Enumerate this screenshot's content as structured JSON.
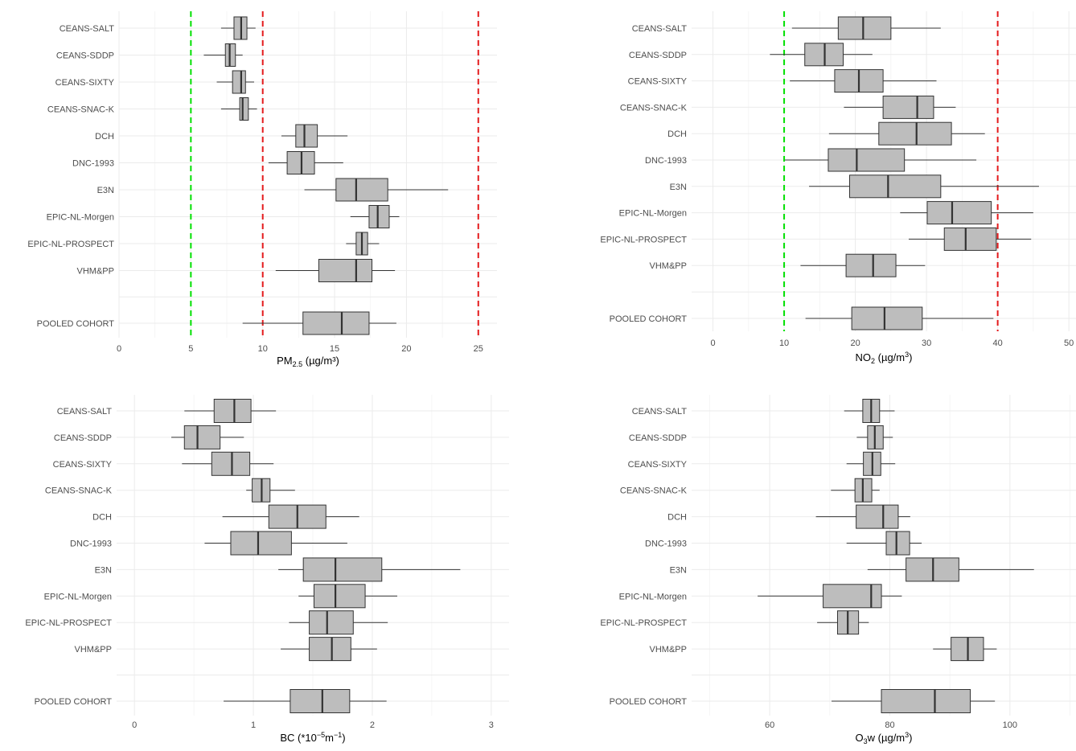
{
  "chart_data": [
    {
      "type": "boxplot",
      "orientation": "horizontal",
      "xlabel": "PM 2.5 (µg/m³)",
      "xlabel_parts": {
        "main": "PM",
        "sub": "2.5",
        "rest": " (µg/m³)"
      },
      "xlim": [
        0,
        26.3
      ],
      "xticks": [
        0,
        5,
        10,
        15,
        20,
        25
      ],
      "grid": true,
      "reference_lines": [
        {
          "value": 5,
          "color": "#00e000"
        },
        {
          "value": 10,
          "color": "#e41a1c"
        },
        {
          "value": 25,
          "color": "#e41a1c"
        }
      ],
      "categories": [
        "CEANS-SALT",
        "CEANS-SDDP",
        "CEANS-SIXTY",
        "CEANS-SNAC-K",
        "DCH",
        "DNC-1993",
        "E3N",
        "EPIC-NL-Morgen",
        "EPIC-NL-PROSPECT",
        "VHM&PP",
        "POOLED COHORT"
      ],
      "boxes": [
        {
          "low": 7.1,
          "q1": 8.0,
          "median": 8.5,
          "q3": 8.9,
          "high": 9.5
        },
        {
          "low": 5.9,
          "q1": 7.4,
          "median": 7.7,
          "q3": 8.1,
          "high": 8.6
        },
        {
          "low": 6.8,
          "q1": 7.9,
          "median": 8.5,
          "q3": 8.8,
          "high": 9.4
        },
        {
          "low": 7.1,
          "q1": 8.4,
          "median": 8.6,
          "q3": 9.0,
          "high": 9.6
        },
        {
          "low": 11.3,
          "q1": 12.3,
          "median": 12.9,
          "q3": 13.8,
          "high": 15.9
        },
        {
          "low": 10.4,
          "q1": 11.7,
          "median": 12.7,
          "q3": 13.6,
          "high": 15.6
        },
        {
          "low": 12.9,
          "q1": 15.1,
          "median": 16.5,
          "q3": 18.7,
          "high": 22.9
        },
        {
          "low": 16.1,
          "q1": 17.4,
          "median": 18.0,
          "q3": 18.8,
          "high": 19.5
        },
        {
          "low": 15.8,
          "q1": 16.5,
          "median": 16.9,
          "q3": 17.3,
          "high": 18.1
        },
        {
          "low": 10.9,
          "q1": 13.9,
          "median": 16.5,
          "q3": 17.6,
          "high": 19.2
        },
        {
          "low": 8.6,
          "q1": 12.8,
          "median": 15.5,
          "q3": 17.4,
          "high": 19.3
        }
      ]
    },
    {
      "type": "boxplot",
      "orientation": "horizontal",
      "xlabel": "NO2 (µg/m3)",
      "xlabel_parts": {
        "main": "NO",
        "sub": "2",
        "rest": " (µg/m",
        "sup": "3",
        "end": ")"
      },
      "xlim": [
        -3,
        51
      ],
      "xticks": [
        0,
        10,
        20,
        30,
        40,
        50
      ],
      "grid": true,
      "reference_lines": [
        {
          "value": 10,
          "color": "#00e000"
        },
        {
          "value": 40,
          "color": "#e41a1c"
        }
      ],
      "categories": [
        "CEANS-SALT",
        "CEANS-SDDP",
        "CEANS-SIXTY",
        "CEANS-SNAC-K",
        "DCH",
        "DNC-1993",
        "E3N",
        "EPIC-NL-Morgen",
        "EPIC-NL-PROSPECT",
        "VHM&PP",
        "POOLED COHORT"
      ],
      "boxes": [
        {
          "low": 11.1,
          "q1": 17.6,
          "median": 21.1,
          "q3": 25.0,
          "high": 32.0
        },
        {
          "low": 8.0,
          "q1": 12.9,
          "median": 15.7,
          "q3": 18.3,
          "high": 22.4
        },
        {
          "low": 10.8,
          "q1": 17.1,
          "median": 20.5,
          "q3": 23.9,
          "high": 31.4
        },
        {
          "low": 18.4,
          "q1": 23.9,
          "median": 28.7,
          "q3": 31.0,
          "high": 34.1
        },
        {
          "low": 16.3,
          "q1": 23.3,
          "median": 28.6,
          "q3": 33.5,
          "high": 38.2
        },
        {
          "low": 10.1,
          "q1": 16.2,
          "median": 20.2,
          "q3": 26.9,
          "high": 37.0
        },
        {
          "low": 13.5,
          "q1": 19.2,
          "median": 24.6,
          "q3": 32.0,
          "high": 45.8
        },
        {
          "low": 26.3,
          "q1": 30.1,
          "median": 33.6,
          "q3": 39.1,
          "high": 45.0
        },
        {
          "low": 27.5,
          "q1": 32.5,
          "median": 35.5,
          "q3": 39.8,
          "high": 44.7
        },
        {
          "low": 12.3,
          "q1": 18.7,
          "median": 22.5,
          "q3": 25.7,
          "high": 29.8
        },
        {
          "low": 13.0,
          "q1": 19.5,
          "median": 24.1,
          "q3": 29.4,
          "high": 39.4
        }
      ]
    },
    {
      "type": "boxplot",
      "orientation": "horizontal",
      "xlabel": "BC (*10-5m-1)",
      "xlabel_parts": {
        "main": "BC (*10",
        "sup": "−5",
        "rest": "m",
        "sup2": "−1",
        "end": ")"
      },
      "xlim": [
        -0.15,
        3.15
      ],
      "xticks": [
        0,
        1,
        2,
        3
      ],
      "grid": true,
      "reference_lines": [],
      "categories": [
        "CEANS-SALT",
        "CEANS-SDDP",
        "CEANS-SIXTY",
        "CEANS-SNAC-K",
        "DCH",
        "DNC-1993",
        "E3N",
        "EPIC-NL-Morgen",
        "EPIC-NL-PROSPECT",
        "VHM&PP",
        "POOLED COHORT"
      ],
      "boxes": [
        {
          "low": 0.42,
          "q1": 0.67,
          "median": 0.84,
          "q3": 0.98,
          "high": 1.19
        },
        {
          "low": 0.31,
          "q1": 0.42,
          "median": 0.53,
          "q3": 0.72,
          "high": 0.92
        },
        {
          "low": 0.4,
          "q1": 0.65,
          "median": 0.82,
          "q3": 0.97,
          "high": 1.17
        },
        {
          "low": 0.94,
          "q1": 0.99,
          "median": 1.07,
          "q3": 1.14,
          "high": 1.35
        },
        {
          "low": 0.74,
          "q1": 1.13,
          "median": 1.37,
          "q3": 1.61,
          "high": 1.89
        },
        {
          "low": 0.59,
          "q1": 0.81,
          "median": 1.04,
          "q3": 1.32,
          "high": 1.79
        },
        {
          "low": 1.21,
          "q1": 1.42,
          "median": 1.69,
          "q3": 2.08,
          "high": 2.74
        },
        {
          "low": 1.38,
          "q1": 1.51,
          "median": 1.69,
          "q3": 1.94,
          "high": 2.21
        },
        {
          "low": 1.3,
          "q1": 1.47,
          "median": 1.62,
          "q3": 1.84,
          "high": 2.13
        },
        {
          "low": 1.23,
          "q1": 1.47,
          "median": 1.66,
          "q3": 1.82,
          "high": 2.04
        },
        {
          "low": 0.75,
          "q1": 1.31,
          "median": 1.58,
          "q3": 1.81,
          "high": 2.12
        }
      ]
    },
    {
      "type": "boxplot",
      "orientation": "horizontal",
      "xlabel": "O3w (µg/m3)",
      "xlabel_parts": {
        "main": "O",
        "sub": "3",
        "rest": "w (µg/m",
        "sup": "3",
        "end": ")"
      },
      "xlim": [
        47,
        111
      ],
      "xticks": [
        60,
        80,
        100
      ],
      "grid": true,
      "reference_lines": [],
      "categories": [
        "CEANS-SALT",
        "CEANS-SDDP",
        "CEANS-SIXTY",
        "CEANS-SNAC-K",
        "DCH",
        "DNC-1993",
        "E3N",
        "EPIC-NL-Morgen",
        "EPIC-NL-PROSPECT",
        "VHM&PP",
        "POOLED COHORT"
      ],
      "boxes": [
        {
          "low": 72.4,
          "q1": 75.5,
          "median": 76.9,
          "q3": 78.3,
          "high": 80.8
        },
        {
          "low": 74.5,
          "q1": 76.3,
          "median": 77.5,
          "q3": 78.9,
          "high": 80.5
        },
        {
          "low": 72.8,
          "q1": 75.6,
          "median": 77.1,
          "q3": 78.5,
          "high": 80.9
        },
        {
          "low": 70.2,
          "q1": 74.2,
          "median": 75.5,
          "q3": 77.0,
          "high": 78.3
        },
        {
          "low": 67.7,
          "q1": 74.4,
          "median": 78.9,
          "q3": 81.4,
          "high": 83.4
        },
        {
          "low": 72.8,
          "q1": 79.4,
          "median": 81.1,
          "q3": 83.3,
          "high": 85.3
        },
        {
          "low": 76.3,
          "q1": 82.7,
          "median": 87.2,
          "q3": 91.5,
          "high": 104.0
        },
        {
          "low": 58.0,
          "q1": 68.9,
          "median": 76.9,
          "q3": 78.6,
          "high": 82.0
        },
        {
          "low": 67.9,
          "q1": 71.3,
          "median": 73.0,
          "q3": 74.8,
          "high": 76.5
        },
        {
          "low": 87.2,
          "q1": 90.2,
          "median": 93.0,
          "q3": 95.6,
          "high": 97.8
        },
        {
          "low": 70.3,
          "q1": 78.6,
          "median": 87.5,
          "q3": 93.4,
          "high": 97.5
        }
      ]
    }
  ]
}
